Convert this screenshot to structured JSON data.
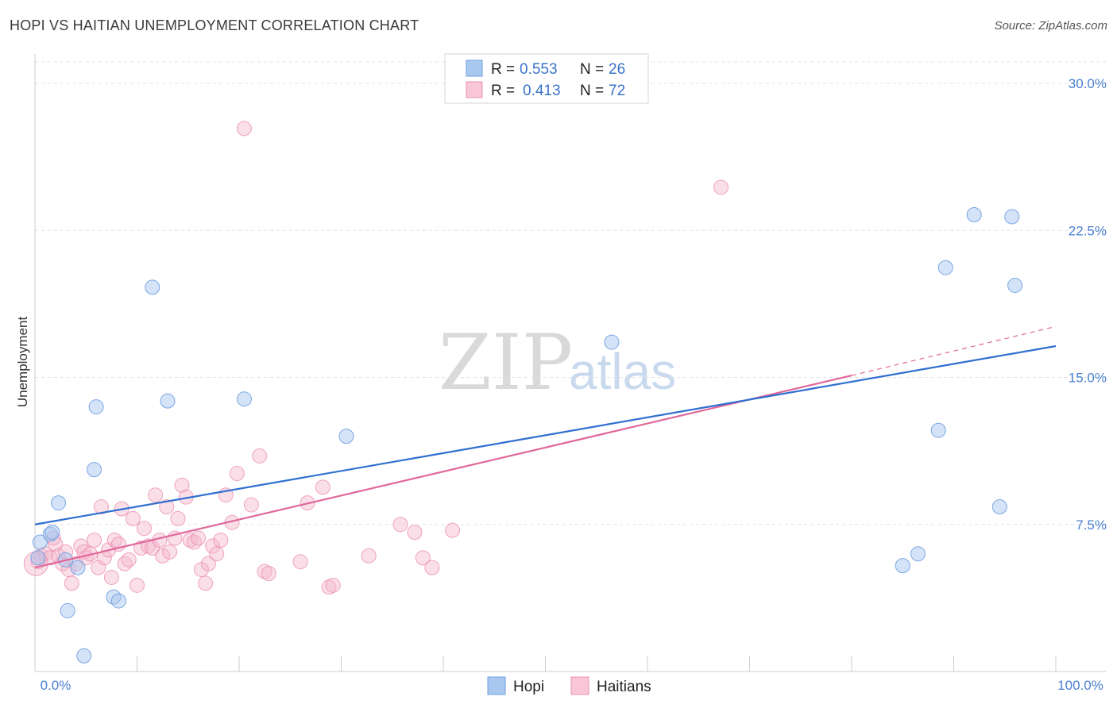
{
  "header": {
    "title": "HOPI VS HAITIAN UNEMPLOYMENT CORRELATION CHART",
    "source": "Source: ZipAtlas.com"
  },
  "watermark": {
    "zip": "ZIP",
    "atlas": "atlas"
  },
  "legend": {
    "r_label": "R =",
    "n_label": "N =",
    "hopi": {
      "r": "0.553",
      "n": "26"
    },
    "haitians": {
      "r": "0.413",
      "n": "72"
    }
  },
  "chart_data": {
    "type": "scatter",
    "title": "HOPI VS HAITIAN UNEMPLOYMENT CORRELATION CHART",
    "ylabel": "Unemployment",
    "xlabel": "",
    "xlim": [
      0,
      100
    ],
    "ylim": [
      0,
      31.5
    ],
    "x_tick_labels": [
      "0.0%",
      "100.0%"
    ],
    "y_ticks": [
      7.5,
      15.0,
      22.5,
      30.0
    ],
    "y_tick_labels": [
      "7.5%",
      "15.0%",
      "22.5%",
      "30.0%"
    ],
    "grid": "horizontal dashed",
    "legend_position": "top-center",
    "colors": {
      "hopi": "#a9c8f0",
      "hopi_line": "#2f6fd0",
      "haitians": "#f5b7cb",
      "haitians_line": "#e0689a"
    },
    "series": [
      {
        "name": "Hopi",
        "r": 0.553,
        "n": 26,
        "trend": {
          "x": [
            0,
            100
          ],
          "y": [
            7.5,
            16.6
          ]
        },
        "points": [
          [
            0.5,
            6.6
          ],
          [
            1.5,
            7.0
          ],
          [
            1.7,
            7.1
          ],
          [
            2.3,
            8.6
          ],
          [
            3.0,
            5.7
          ],
          [
            3.2,
            3.1
          ],
          [
            4.2,
            5.3
          ],
          [
            4.8,
            0.8
          ],
          [
            5.8,
            10.3
          ],
          [
            6.0,
            13.5
          ],
          [
            7.7,
            3.8
          ],
          [
            8.2,
            3.6
          ],
          [
            11.5,
            19.6
          ],
          [
            13.0,
            13.8
          ],
          [
            20.5,
            13.9
          ],
          [
            30.5,
            12.0
          ],
          [
            56.5,
            16.8
          ],
          [
            85.0,
            5.4
          ],
          [
            86.5,
            6.0
          ],
          [
            88.5,
            12.3
          ],
          [
            89.2,
            20.6
          ],
          [
            92.0,
            23.3
          ],
          [
            94.5,
            8.4
          ],
          [
            95.7,
            23.2
          ],
          [
            96.0,
            19.7
          ],
          [
            0.3,
            5.8
          ]
        ]
      },
      {
        "name": "Haitians",
        "r": 0.413,
        "n": 72,
        "trend": {
          "x": [
            0,
            80
          ],
          "y": [
            5.3,
            15.1
          ]
        },
        "trend_dashed": {
          "x": [
            80,
            100
          ],
          "y": [
            15.1,
            17.6
          ]
        },
        "points": [
          [
            0.3,
            5.6
          ],
          [
            0.6,
            5.9
          ],
          [
            1.0,
            6.0
          ],
          [
            1.5,
            5.8
          ],
          [
            1.8,
            6.8
          ],
          [
            2.0,
            6.5
          ],
          [
            2.3,
            5.9
          ],
          [
            2.7,
            5.5
          ],
          [
            3.0,
            6.1
          ],
          [
            3.3,
            5.2
          ],
          [
            3.6,
            4.5
          ],
          [
            4.0,
            5.5
          ],
          [
            4.5,
            6.4
          ],
          [
            4.8,
            6.1
          ],
          [
            5.0,
            5.8
          ],
          [
            5.4,
            6.0
          ],
          [
            5.8,
            6.7
          ],
          [
            6.2,
            5.3
          ],
          [
            6.5,
            8.4
          ],
          [
            6.8,
            5.8
          ],
          [
            7.2,
            6.2
          ],
          [
            7.5,
            4.8
          ],
          [
            7.8,
            6.7
          ],
          [
            8.2,
            6.5
          ],
          [
            8.5,
            8.3
          ],
          [
            8.8,
            5.5
          ],
          [
            9.2,
            5.7
          ],
          [
            9.6,
            7.8
          ],
          [
            10.0,
            4.4
          ],
          [
            10.4,
            6.3
          ],
          [
            10.7,
            7.3
          ],
          [
            11.1,
            6.4
          ],
          [
            11.5,
            6.3
          ],
          [
            11.8,
            9.0
          ],
          [
            12.2,
            6.7
          ],
          [
            12.5,
            5.9
          ],
          [
            12.9,
            8.4
          ],
          [
            13.2,
            6.1
          ],
          [
            13.7,
            6.8
          ],
          [
            14.0,
            7.8
          ],
          [
            14.4,
            9.5
          ],
          [
            14.8,
            8.9
          ],
          [
            15.2,
            6.7
          ],
          [
            15.6,
            6.6
          ],
          [
            16.0,
            6.8
          ],
          [
            16.3,
            5.2
          ],
          [
            16.7,
            4.5
          ],
          [
            17.0,
            5.5
          ],
          [
            17.4,
            6.4
          ],
          [
            17.8,
            6.0
          ],
          [
            18.2,
            6.7
          ],
          [
            18.7,
            9.0
          ],
          [
            19.3,
            7.6
          ],
          [
            19.8,
            10.1
          ],
          [
            20.5,
            27.7
          ],
          [
            21.2,
            8.5
          ],
          [
            22.0,
            11.0
          ],
          [
            22.5,
            5.1
          ],
          [
            22.9,
            5.0
          ],
          [
            26.0,
            5.6
          ],
          [
            26.7,
            8.6
          ],
          [
            28.2,
            9.4
          ],
          [
            28.8,
            4.3
          ],
          [
            29.2,
            4.4
          ],
          [
            32.7,
            5.9
          ],
          [
            35.8,
            7.5
          ],
          [
            37.2,
            7.1
          ],
          [
            38.0,
            5.8
          ],
          [
            38.9,
            5.3
          ],
          [
            40.9,
            7.2
          ],
          [
            67.2,
            24.7
          ],
          [
            0.1,
            5.5
          ]
        ]
      }
    ]
  },
  "bottom_legend": {
    "hopi": "Hopi",
    "haitians": "Haitians"
  }
}
